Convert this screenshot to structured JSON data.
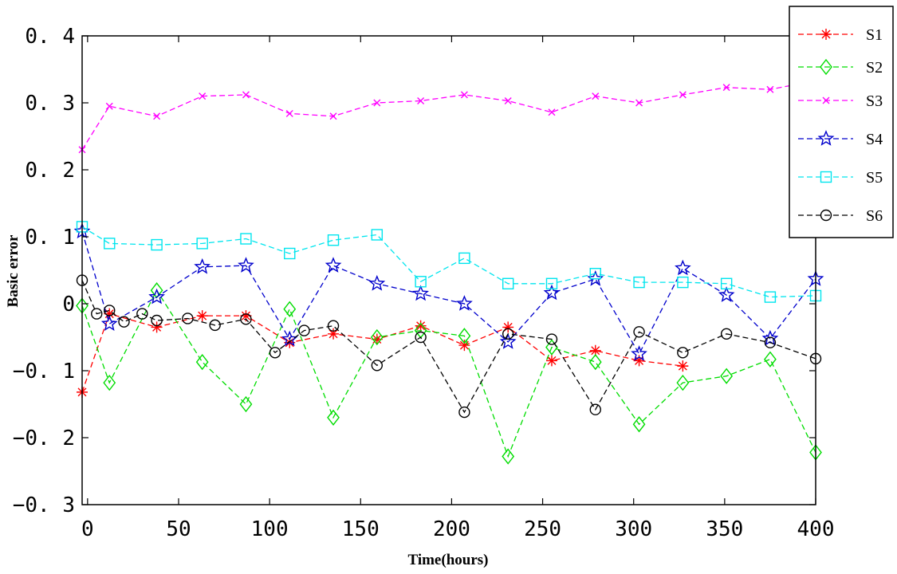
{
  "chart_data": {
    "type": "line",
    "title": "",
    "xlabel": "Time(hours)",
    "ylabel": "Basic error",
    "xlim": [
      -3,
      400
    ],
    "ylim": [
      -0.3,
      0.4
    ],
    "xticks": [
      0,
      50,
      100,
      150,
      200,
      250,
      300,
      350,
      400
    ],
    "xtick_labels": [
      "0",
      "50",
      "100",
      "150",
      "200",
      "250",
      "300",
      "350",
      "400"
    ],
    "yticks": [
      -0.3,
      -0.2,
      -0.1,
      0,
      0.1,
      0.2,
      0.3,
      0.4
    ],
    "ytick_labels": [
      "−0. 3",
      "−0. 2",
      "−0. 1",
      "0",
      "0. 1",
      "0. 2",
      "0. 3",
      "0. 4"
    ],
    "grid": false,
    "legend_position": "top-right",
    "series": [
      {
        "name": "S1",
        "color": "#ff0000",
        "marker": "asterisk",
        "x": [
          -3,
          12,
          38,
          63,
          87,
          111,
          135,
          159,
          183,
          207,
          231,
          255,
          279,
          303,
          327
        ],
        "y": [
          -0.132,
          -0.015,
          -0.035,
          -0.018,
          -0.018,
          -0.058,
          -0.045,
          -0.053,
          -0.033,
          -0.062,
          -0.035,
          -0.085,
          -0.07,
          -0.085,
          -0.093
        ]
      },
      {
        "name": "S2",
        "color": "#00dd00",
        "marker": "diamond",
        "x": [
          -3,
          12,
          38,
          63,
          87,
          111,
          135,
          159,
          183,
          207,
          231,
          255,
          279,
          303,
          327,
          351,
          375,
          400
        ],
        "y": [
          -0.003,
          -0.118,
          0.02,
          -0.087,
          -0.15,
          -0.008,
          -0.17,
          -0.05,
          -0.04,
          -0.048,
          -0.228,
          -0.065,
          -0.087,
          -0.18,
          -0.118,
          -0.108,
          -0.083,
          -0.222
        ]
      },
      {
        "name": "S3",
        "color": "#ff00ff",
        "marker": "x",
        "x": [
          -3,
          12,
          38,
          63,
          87,
          111,
          135,
          159,
          183,
          207,
          231,
          255,
          279,
          303,
          327,
          351,
          375,
          400
        ],
        "y": [
          0.23,
          0.295,
          0.28,
          0.31,
          0.312,
          0.284,
          0.28,
          0.3,
          0.303,
          0.312,
          0.303,
          0.286,
          0.31,
          0.3,
          0.312,
          0.323,
          0.32,
          0.333
        ]
      },
      {
        "name": "S4",
        "color": "#0000cc",
        "marker": "star",
        "x": [
          -3,
          12,
          38,
          63,
          87,
          111,
          135,
          159,
          183,
          207,
          231,
          255,
          279,
          303,
          327,
          351,
          375,
          400
        ],
        "y": [
          0.108,
          -0.03,
          0.01,
          0.055,
          0.057,
          -0.053,
          0.057,
          0.03,
          0.015,
          0.0,
          -0.057,
          0.016,
          0.037,
          -0.075,
          0.053,
          0.013,
          -0.052,
          0.037
        ]
      },
      {
        "name": "S5",
        "color": "#00e5ee",
        "marker": "square",
        "x": [
          -3,
          12,
          38,
          63,
          87,
          111,
          135,
          159,
          183,
          207,
          231,
          255,
          279,
          303,
          327,
          351,
          375,
          400
        ],
        "y": [
          0.115,
          0.09,
          0.088,
          0.09,
          0.097,
          0.075,
          0.095,
          0.103,
          0.033,
          0.068,
          0.03,
          0.03,
          0.045,
          0.032,
          0.032,
          0.03,
          0.01,
          0.012
        ]
      },
      {
        "name": "S6",
        "color": "#000000",
        "marker": "circle",
        "x": [
          -3,
          5,
          12,
          20,
          30,
          38,
          55,
          70,
          87,
          103,
          119,
          135,
          159,
          183,
          207,
          231,
          255,
          279,
          303,
          327,
          351,
          375,
          400
        ],
        "y": [
          0.035,
          -0.015,
          -0.01,
          -0.027,
          -0.015,
          -0.025,
          -0.022,
          -0.032,
          -0.023,
          -0.073,
          -0.04,
          -0.033,
          -0.092,
          -0.05,
          -0.162,
          -0.045,
          -0.053,
          -0.158,
          -0.042,
          -0.073,
          -0.045,
          -0.058,
          -0.082
        ]
      }
    ]
  }
}
